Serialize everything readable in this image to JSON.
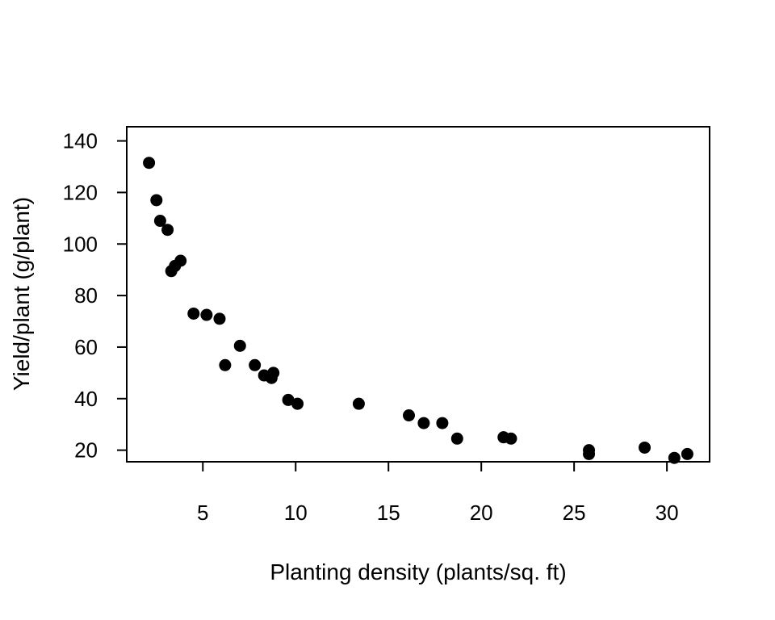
{
  "chart_data": {
    "type": "scatter",
    "title": "",
    "xlabel": "Planting density (plants/sq. ft)",
    "ylabel": "Yield/plant (g/plant)",
    "xlim": [
      0.9,
      32.3
    ],
    "ylim": [
      15.5,
      145.5
    ],
    "xticks": [
      5,
      10,
      15,
      20,
      25,
      30
    ],
    "yticks": [
      20,
      40,
      60,
      80,
      100,
      120,
      140
    ],
    "grid": false,
    "legend": "none",
    "marker_color": "#000000",
    "points": [
      {
        "x": 2.1,
        "y": 131.5
      },
      {
        "x": 2.5,
        "y": 117
      },
      {
        "x": 2.7,
        "y": 109
      },
      {
        "x": 3.1,
        "y": 105.5
      },
      {
        "x": 3.3,
        "y": 89.5
      },
      {
        "x": 3.5,
        "y": 91.5
      },
      {
        "x": 3.8,
        "y": 93.5
      },
      {
        "x": 4.5,
        "y": 73
      },
      {
        "x": 5.2,
        "y": 72.5
      },
      {
        "x": 5.9,
        "y": 71
      },
      {
        "x": 6.2,
        "y": 53
      },
      {
        "x": 7.0,
        "y": 60.5
      },
      {
        "x": 7.8,
        "y": 53
      },
      {
        "x": 8.3,
        "y": 49
      },
      {
        "x": 8.7,
        "y": 48
      },
      {
        "x": 8.8,
        "y": 50
      },
      {
        "x": 9.6,
        "y": 39.5
      },
      {
        "x": 10.1,
        "y": 38
      },
      {
        "x": 13.4,
        "y": 38
      },
      {
        "x": 16.1,
        "y": 33.5
      },
      {
        "x": 16.9,
        "y": 30.5
      },
      {
        "x": 17.9,
        "y": 30.5
      },
      {
        "x": 18.7,
        "y": 24.5
      },
      {
        "x": 21.2,
        "y": 25
      },
      {
        "x": 21.6,
        "y": 24.5
      },
      {
        "x": 25.8,
        "y": 20
      },
      {
        "x": 25.8,
        "y": 18.5
      },
      {
        "x": 28.8,
        "y": 21
      },
      {
        "x": 30.4,
        "y": 17
      },
      {
        "x": 31.1,
        "y": 18.5
      }
    ]
  }
}
